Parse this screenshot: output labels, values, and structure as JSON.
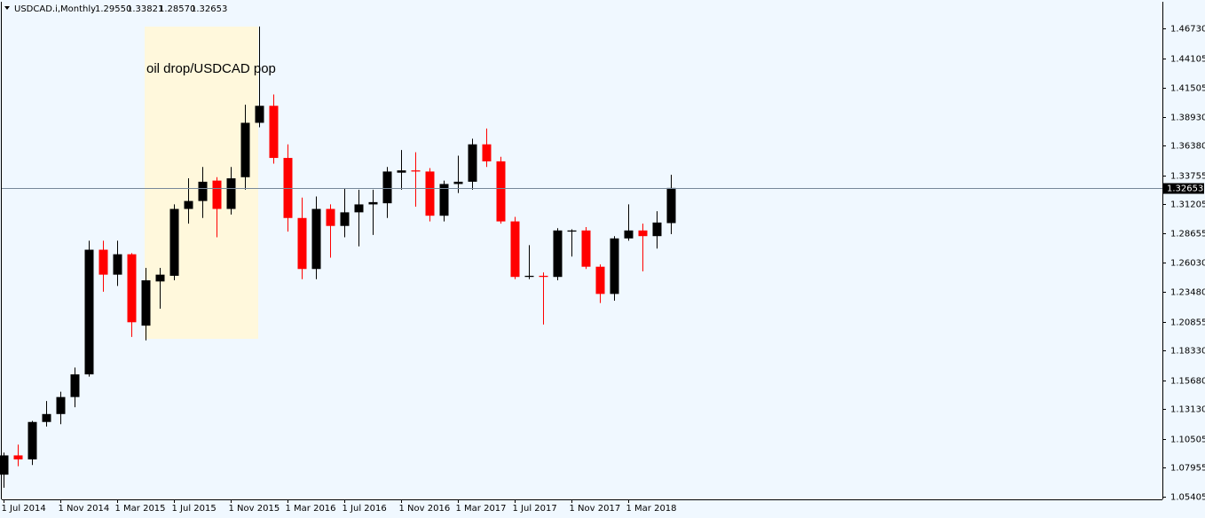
{
  "chart_data": {
    "type": "candlestick",
    "title": "USDCAD.i,Monthly",
    "header_ohlc": [
      "1.29550",
      "1.33821",
      "1.28570",
      "1.32653"
    ],
    "annotation": "oil drop/USDCAD pop",
    "categories": [
      "1 Jul 2014",
      null,
      null,
      null,
      "1 Nov 2014",
      null,
      null,
      null,
      "1 Mar 2015",
      null,
      null,
      null,
      "1 Jul 2015",
      null,
      null,
      null,
      "1 Nov 2015",
      null,
      null,
      null,
      "1 Mar 2016",
      null,
      null,
      null,
      "1 Jul 2016",
      null,
      null,
      null,
      "1 Nov 2016",
      null,
      null,
      null,
      "1 Mar 2017",
      null,
      null,
      null,
      "1 Jul 2017",
      null,
      null,
      null,
      "1 Nov 2017",
      null,
      null,
      null,
      "1 Mar 2018",
      null,
      null,
      null
    ],
    "open": [
      1.0735,
      1.0905,
      1.087,
      1.12,
      1.127,
      1.142,
      1.162,
      1.272,
      1.25,
      1.268,
      1.205,
      1.244,
      1.249,
      1.308,
      1.315,
      1.333,
      1.308,
      1.336,
      1.384,
      1.399,
      1.353,
      1.3,
      1.255,
      1.308,
      1.293,
      1.305,
      1.312,
      1.313,
      1.34,
      1.342,
      1.341,
      1.302,
      1.33,
      1.332,
      1.365,
      1.35,
      1.297,
      1.248,
      1.249,
      1.248,
      1.288,
      1.289,
      1.257,
      1.233,
      1.282,
      1.289,
      1.284,
      1.2955
    ],
    "high": [
      1.093,
      1.1,
      1.121,
      1.1385,
      1.1467,
      1.168,
      1.28,
      1.28,
      1.28,
      1.269,
      1.256,
      1.256,
      1.312,
      1.335,
      1.345,
      1.336,
      1.345,
      1.4,
      1.469,
      1.409,
      1.365,
      1.318,
      1.319,
      1.312,
      1.326,
      1.325,
      1.325,
      1.345,
      1.36,
      1.358,
      1.344,
      1.333,
      1.355,
      1.37,
      1.379,
      1.354,
      1.301,
      1.276,
      1.252,
      1.291,
      1.29,
      1.292,
      1.259,
      1.284,
      1.312,
      1.295,
      1.306,
      1.33821
    ],
    "low": [
      1.062,
      1.081,
      1.082,
      1.116,
      1.118,
      1.133,
      1.16,
      1.235,
      1.24,
      1.195,
      1.192,
      1.22,
      1.245,
      1.295,
      1.3,
      1.283,
      1.303,
      1.325,
      1.38,
      1.348,
      1.288,
      1.246,
      1.246,
      1.265,
      1.283,
      1.275,
      1.285,
      1.3,
      1.325,
      1.31,
      1.297,
      1.297,
      1.322,
      1.325,
      1.345,
      1.295,
      1.246,
      1.246,
      1.206,
      1.245,
      1.266,
      1.255,
      1.225,
      1.227,
      1.28,
      1.253,
      1.273,
      1.2857
    ],
    "close": [
      1.0905,
      1.087,
      1.12,
      1.127,
      1.142,
      1.162,
      1.272,
      1.25,
      1.268,
      1.208,
      1.245,
      1.25,
      1.308,
      1.315,
      1.332,
      1.308,
      1.335,
      1.384,
      1.399,
      1.353,
      1.3,
      1.255,
      1.308,
      1.293,
      1.305,
      1.312,
      1.314,
      1.341,
      1.342,
      1.341,
      1.302,
      1.33,
      1.332,
      1.365,
      1.35,
      1.297,
      1.248,
      1.249,
      1.248,
      1.289,
      1.289,
      1.257,
      1.233,
      1.282,
      1.289,
      1.284,
      1.296,
      1.32653
    ],
    "up_color": "#000000",
    "down_color": "#ff0000",
    "ylim": [
      1.0517,
      1.4908
    ],
    "yticks": [
      {
        "value": 1.4673,
        "label": "1.46730"
      },
      {
        "value": 1.44105,
        "label": "1.44105"
      },
      {
        "value": 1.41505,
        "label": "1.41505"
      },
      {
        "value": 1.3893,
        "label": "1.38930"
      },
      {
        "value": 1.3638,
        "label": "1.36380"
      },
      {
        "value": 1.33755,
        "label": "1.33755"
      },
      {
        "value": 1.31205,
        "label": "1.31205"
      },
      {
        "value": 1.28655,
        "label": "1.28655"
      },
      {
        "value": 1.2603,
        "label": "1.26030"
      },
      {
        "value": 1.2348,
        "label": "1.23480"
      },
      {
        "value": 1.20855,
        "label": "1.20855"
      },
      {
        "value": 1.1833,
        "label": "1.18330"
      },
      {
        "value": 1.1568,
        "label": "1.15680"
      },
      {
        "value": 1.1313,
        "label": "1.13130"
      },
      {
        "value": 1.10505,
        "label": "1.10505"
      },
      {
        "value": 1.07955,
        "label": "1.07955"
      },
      {
        "value": 1.05405,
        "label": "1.05405"
      }
    ],
    "current_price": {
      "value": 1.32653,
      "label": "1.32653"
    },
    "grid": false
  }
}
